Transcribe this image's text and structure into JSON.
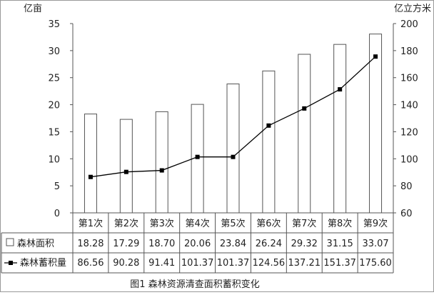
{
  "chart_data": {
    "type": "bar",
    "title": "图1 森林资源清查面积蓄积变化",
    "categories": [
      "第1次",
      "第2次",
      "第3次",
      "第4次",
      "第5次",
      "第6次",
      "第7次",
      "第8次",
      "第9次"
    ],
    "left_axis": {
      "unit": "亿亩",
      "range": [
        0,
        35
      ],
      "ticks": [
        "0",
        "5",
        "10",
        "15",
        "20",
        "25",
        "30",
        "35"
      ]
    },
    "right_axis": {
      "unit": "亿立方米",
      "range": [
        60,
        200
      ],
      "ticks": [
        "60",
        "80",
        "100",
        "120",
        "140",
        "160",
        "180",
        "200"
      ]
    },
    "series": [
      {
        "name": "森林面积",
        "type": "bar",
        "axis": "left",
        "values": [
          18.28,
          17.29,
          18.7,
          20.06,
          23.84,
          26.24,
          29.32,
          31.15,
          33.07
        ],
        "labels": [
          "18.28",
          "17.29",
          "18.70",
          "20.06",
          "23.84",
          "26.24",
          "29.32",
          "31.15",
          "33.07"
        ]
      },
      {
        "name": "森林蓄积量",
        "type": "line",
        "axis": "right",
        "values": [
          86.56,
          90.28,
          91.41,
          101.37,
          101.37,
          124.56,
          137.21,
          151.37,
          175.6
        ],
        "labels": [
          "86.56",
          "90.28",
          "91.41",
          "101.37",
          "101.37",
          "124.56",
          "137.21",
          "151.37",
          "175.60"
        ]
      }
    ],
    "grid": false,
    "legend": "data-table-left",
    "colors": {
      "bar_fill": "#ffffff",
      "bar_stroke": "#555555",
      "line": "#000000",
      "axis": "#555555"
    }
  }
}
